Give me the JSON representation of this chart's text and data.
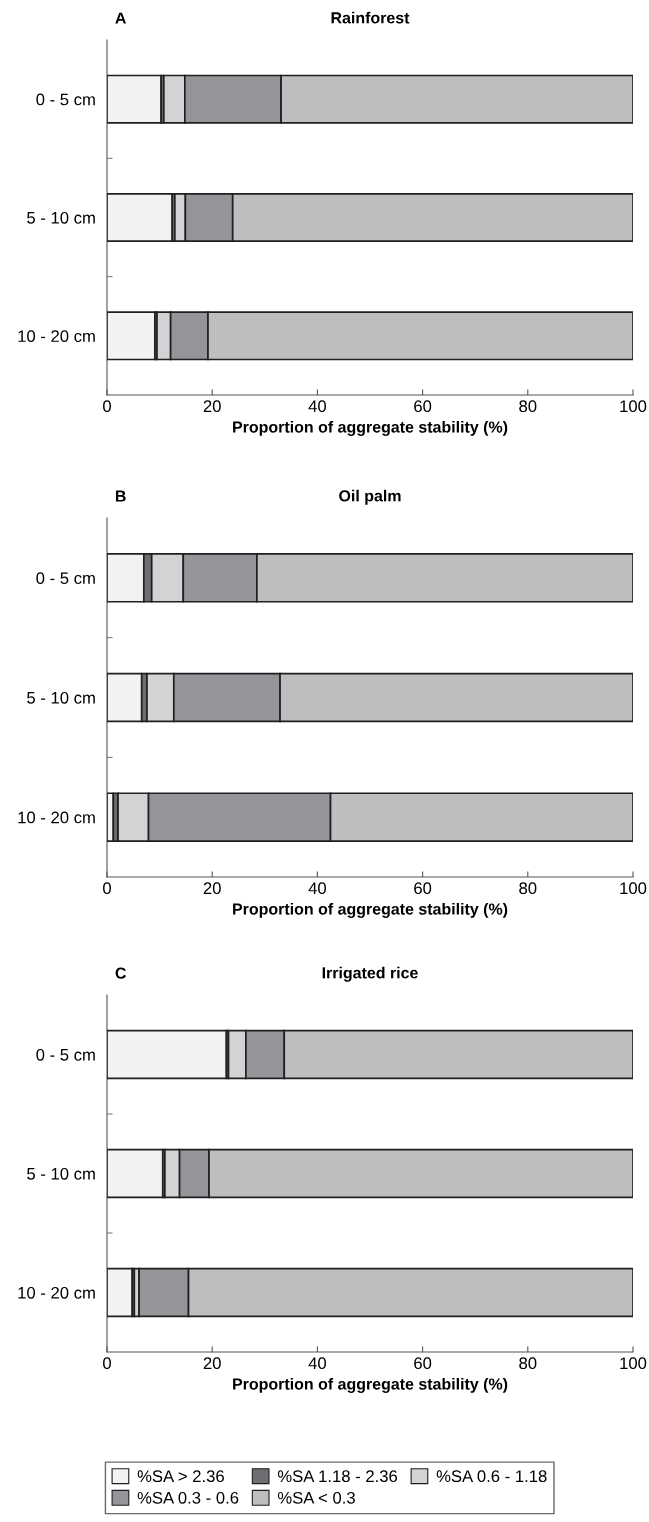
{
  "chart_data": [
    {
      "type": "bar",
      "orientation": "horizontal",
      "stacked": true,
      "title": "Rainforest",
      "annotations": [
        "A"
      ],
      "xlabel": "Proportion of aggregate stability (%)",
      "categories": [
        "0 - 5 cm",
        "5 - 10 cm",
        "10 - 20 cm"
      ],
      "xlim": [
        0,
        100
      ],
      "xticks": [
        0,
        20,
        40,
        60,
        80,
        100
      ],
      "grid": false,
      "series": [
        {
          "color": "#f1f2f3",
          "values": [
            10.3,
            12.4,
            9.1
          ]
        },
        {
          "color": "#6d6e71",
          "values": [
            0.5,
            0.5,
            0.4
          ]
        },
        {
          "color": "#d1d3d4",
          "values": [
            4.0,
            2.0,
            2.6
          ]
        },
        {
          "color": "#939598",
          "values": [
            18.3,
            9.0,
            7.1
          ]
        },
        {
          "color": "#bcbec0",
          "values": [
            66.9,
            76.1,
            80.8
          ]
        }
      ]
    },
    {
      "type": "bar",
      "orientation": "horizontal",
      "stacked": true,
      "title": "Oil palm",
      "annotations": [
        "B"
      ],
      "xlabel": "Proportion of aggregate stability (%)",
      "categories": [
        "0 - 5 cm",
        "5 - 10 cm",
        "10 - 20 cm"
      ],
      "xlim": [
        0,
        100
      ],
      "xticks": [
        0,
        20,
        40,
        60,
        80,
        100
      ],
      "grid": false,
      "series": [
        {
          "color": "#f1f2f3",
          "values": [
            7.0,
            6.6,
            1.2
          ]
        },
        {
          "color": "#6d6e71",
          "values": [
            1.5,
            1.0,
            0.9
          ]
        },
        {
          "color": "#d1d3d4",
          "values": [
            6.0,
            5.1,
            5.8
          ]
        },
        {
          "color": "#939598",
          "values": [
            14.0,
            20.2,
            34.6
          ]
        },
        {
          "color": "#bcbec0",
          "values": [
            71.5,
            67.1,
            57.5
          ]
        }
      ]
    },
    {
      "type": "bar",
      "orientation": "horizontal",
      "stacked": true,
      "title": "Irrigated rice",
      "annotations": [
        "C"
      ],
      "xlabel": "Proportion of aggregate stability (%)",
      "categories": [
        "0 - 5 cm",
        "5 - 10 cm",
        "10 - 20 cm"
      ],
      "xlim": [
        0,
        100
      ],
      "xticks": [
        0,
        20,
        40,
        60,
        80,
        100
      ],
      "grid": false,
      "legend": "bottom",
      "series": [
        {
          "name": "%SA > 2.36",
          "color": "#f1f2f3",
          "values": [
            22.7,
            10.6,
            4.8
          ]
        },
        {
          "name": "%SA 1.18 - 2.36",
          "color": "#6d6e71",
          "values": [
            0.4,
            0.4,
            0.4
          ]
        },
        {
          "name": "%SA 0.6 - 1.18",
          "color": "#d1d3d4",
          "values": [
            3.3,
            2.8,
            0.9
          ]
        },
        {
          "name": "%SA 0.3 - 0.6",
          "color": "#939598",
          "values": [
            7.3,
            5.6,
            9.4
          ]
        },
        {
          "name": "%SA < 0.3",
          "color": "#bcbec0",
          "values": [
            66.3,
            80.6,
            84.5
          ]
        }
      ]
    }
  ]
}
